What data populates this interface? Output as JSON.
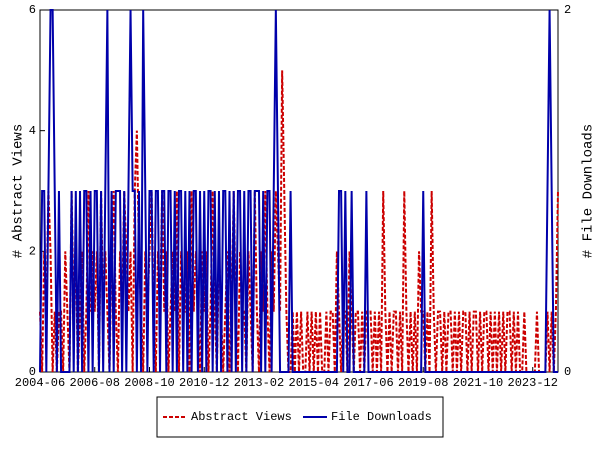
{
  "chart_data": {
    "type": "line",
    "categories": [
      "2004-06",
      null,
      null,
      null,
      null,
      null,
      null,
      null,
      null,
      null,
      null,
      null,
      null,
      null,
      null,
      null,
      null,
      null,
      null,
      null,
      null,
      null,
      null,
      null,
      null,
      null,
      "2006-08",
      null,
      null,
      null,
      null,
      null,
      null,
      null,
      null,
      null,
      null,
      null,
      null,
      null,
      null,
      null,
      null,
      null,
      null,
      null,
      null,
      null,
      null,
      null,
      null,
      null,
      "2008-10",
      null,
      null,
      null,
      null,
      null,
      null,
      null,
      null,
      null,
      null,
      null,
      null,
      null,
      null,
      null,
      null,
      null,
      null,
      null,
      null,
      null,
      null,
      null,
      null,
      null,
      "2010-12",
      null,
      null,
      null,
      null,
      null,
      null,
      null,
      null,
      null,
      null,
      null,
      null,
      null,
      null,
      null,
      null,
      null,
      null,
      null,
      null,
      null,
      null,
      null,
      null,
      null,
      "2013-02",
      null,
      null,
      null,
      null,
      null,
      null,
      null,
      null,
      null,
      null,
      null,
      null,
      null,
      null,
      null,
      null,
      null,
      null,
      null,
      null,
      null,
      null,
      null,
      null,
      null,
      "2015-04",
      null,
      null,
      null,
      null,
      null,
      null,
      null,
      null,
      null,
      null,
      null,
      null,
      null,
      null,
      null,
      null,
      null,
      null,
      null,
      null,
      null,
      null,
      null,
      null,
      null,
      "2017-06",
      null,
      null,
      null,
      null,
      null,
      null,
      null,
      null,
      null,
      null,
      null,
      null,
      null,
      null,
      null,
      null,
      null,
      null,
      null,
      null,
      null,
      null,
      null,
      null,
      null,
      "2019-08",
      null,
      null,
      null,
      null,
      null,
      null,
      null,
      null,
      null,
      null,
      null,
      null,
      null,
      null,
      null,
      null,
      null,
      null,
      null,
      null,
      null,
      null,
      null,
      null,
      null,
      "2021-10",
      null,
      null,
      null,
      null,
      null,
      null,
      null,
      null,
      null,
      null,
      null,
      null,
      null,
      null,
      null,
      null,
      null,
      null,
      null,
      null,
      null,
      null,
      null,
      null,
      null,
      "2023-12",
      null,
      null,
      null,
      null,
      null,
      null,
      null,
      null,
      null,
      null,
      null,
      null
    ],
    "series": [
      {
        "name": "Abstract Views",
        "color": "#cc0000",
        "dash": true,
        "values": [
          1,
          0,
          2,
          1,
          3,
          2,
          0,
          1,
          0,
          1,
          1,
          0,
          2,
          1,
          0,
          3,
          1,
          2,
          0,
          1,
          2,
          0,
          1,
          3,
          1,
          2,
          1,
          2,
          0,
          3,
          1,
          2,
          1,
          0,
          2,
          3,
          1,
          0,
          2,
          1,
          3,
          2,
          1,
          2,
          0,
          3,
          4,
          2,
          1,
          0,
          2,
          1,
          2,
          3,
          1,
          0,
          2,
          1,
          3,
          1,
          2,
          0,
          1,
          2,
          1,
          3,
          0,
          2,
          1,
          1,
          2,
          0,
          3,
          1,
          2,
          1,
          0,
          2,
          1,
          2,
          0,
          1,
          3,
          1,
          0,
          2,
          1,
          0,
          1,
          2,
          0,
          1,
          3,
          1,
          0,
          2,
          1,
          1,
          0,
          2,
          1,
          0,
          3,
          1,
          0,
          2,
          1,
          3,
          1,
          0,
          2,
          1,
          3,
          2,
          1,
          5,
          3,
          1,
          0,
          0,
          1,
          0,
          1,
          0,
          1,
          0,
          0,
          1,
          0,
          1,
          0,
          1,
          0,
          1,
          0,
          0,
          1,
          0,
          1,
          1,
          0,
          2,
          1,
          0,
          1,
          1,
          0,
          2,
          1,
          0,
          1,
          1,
          0,
          1,
          0,
          1,
          1,
          1,
          0,
          1,
          0,
          1,
          0,
          3,
          1,
          0,
          1,
          0,
          1,
          1,
          0,
          1,
          0,
          3,
          1,
          0,
          1,
          0,
          1,
          0,
          2,
          1,
          1,
          0,
          1,
          0,
          3,
          1,
          0,
          1,
          1,
          0,
          1,
          0,
          1,
          1,
          0,
          1,
          0,
          1,
          0,
          1,
          1,
          0,
          1,
          0,
          1,
          1,
          0,
          1,
          0,
          1,
          1,
          0,
          1,
          0,
          1,
          0,
          1,
          0,
          1,
          0,
          1,
          1,
          0,
          1,
          0,
          1,
          0,
          0,
          1,
          0,
          0,
          0,
          0,
          0,
          1,
          0,
          0,
          0,
          0,
          1,
          0,
          1,
          0,
          1,
          3
        ]
      },
      {
        "name": "File Downloads",
        "color": "#0000aa",
        "axis": "y2",
        "values": [
          0,
          1,
          1,
          0,
          1,
          2,
          2,
          1,
          0,
          1,
          0,
          0,
          0,
          0,
          0,
          1,
          0,
          1,
          0,
          1,
          0,
          1,
          1,
          0,
          1,
          0,
          1,
          1,
          0,
          1,
          0,
          1,
          2,
          0,
          1,
          0,
          1,
          1,
          1,
          0,
          1,
          0,
          1,
          2,
          1,
          1,
          0,
          1,
          0,
          2,
          1,
          0,
          1,
          1,
          0,
          1,
          1,
          0,
          1,
          1,
          0,
          1,
          1,
          0,
          1,
          0,
          1,
          1,
          0,
          1,
          0,
          1,
          0,
          1,
          1,
          0,
          1,
          0,
          1,
          0,
          1,
          1,
          0,
          1,
          0,
          1,
          0,
          1,
          1,
          0,
          1,
          0,
          1,
          0,
          1,
          1,
          0,
          1,
          0,
          1,
          1,
          0,
          1,
          1,
          1,
          0,
          1,
          0,
          1,
          1,
          0,
          1,
          2,
          1,
          0,
          0,
          0,
          0,
          0,
          1,
          0,
          0,
          0,
          0,
          0,
          0,
          0,
          0,
          0,
          0,
          0,
          0,
          0,
          0,
          0,
          0,
          0,
          0,
          0,
          0,
          0,
          0,
          1,
          1,
          0,
          1,
          0,
          0,
          1,
          0,
          0,
          0,
          0,
          0,
          0,
          1,
          0,
          0,
          0,
          0,
          0,
          0,
          0,
          0,
          0,
          0,
          0,
          0,
          0,
          0,
          0,
          0,
          0,
          0,
          0,
          0,
          0,
          0,
          0,
          0,
          0,
          0,
          1,
          0,
          0,
          0,
          0,
          0,
          0,
          0,
          0,
          0,
          0,
          0,
          0,
          0,
          0,
          0,
          0,
          0,
          0,
          0,
          0,
          0,
          0,
          0,
          0,
          0,
          0,
          0,
          0,
          0,
          0,
          0,
          0,
          0,
          0,
          0,
          0,
          0,
          0,
          0,
          0,
          0,
          0,
          0,
          0,
          0,
          0,
          0,
          0,
          0,
          0,
          0,
          0,
          0,
          0,
          0,
          0,
          0,
          0,
          1,
          2,
          1,
          0,
          0,
          0
        ]
      }
    ],
    "y_label": "# Abstract Views",
    "y2_label": "# File Downloads",
    "ylim": [
      0,
      6
    ],
    "yticks": [
      0,
      2,
      4,
      6
    ],
    "y2lim": [
      0,
      2
    ],
    "y2ticks": [
      0,
      2
    ],
    "legend": "bottom"
  }
}
